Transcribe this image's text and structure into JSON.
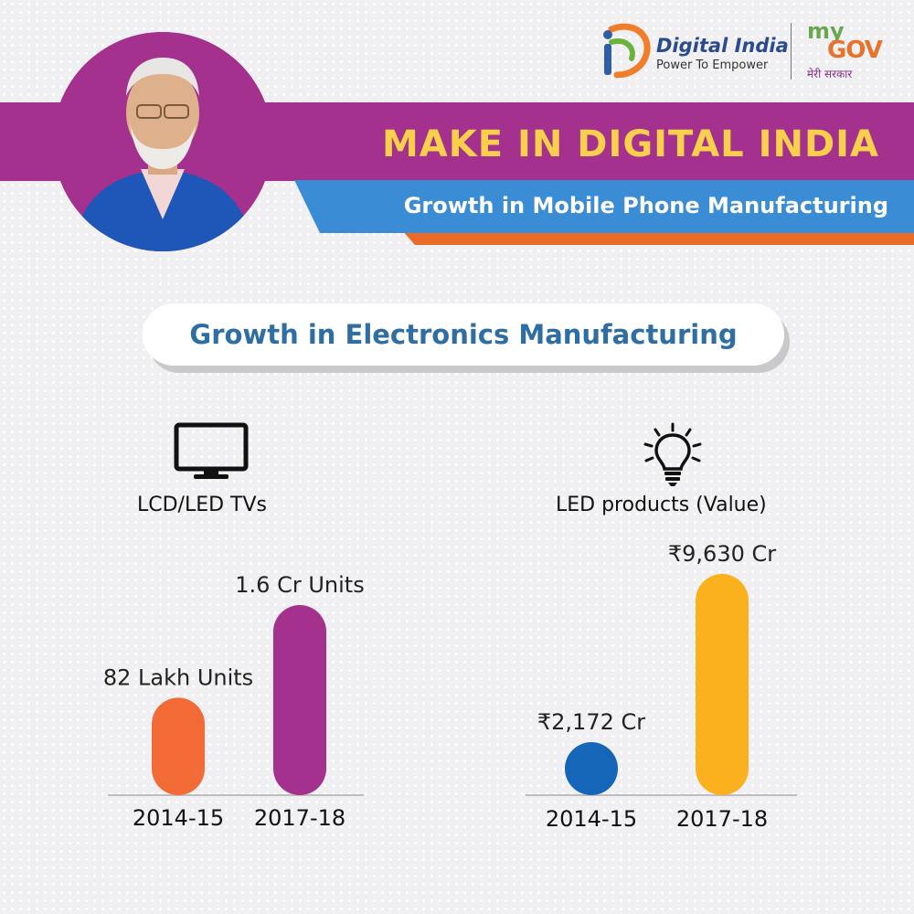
{
  "header": {
    "title": "MAKE IN DIGITAL INDIA",
    "subtitle": "Growth in Mobile Phone Manufacturing",
    "section_title": "Growth in Electronics Manufacturing"
  },
  "logos": {
    "digital_india": "Digital India",
    "digital_india_tagline": "Power To Empower",
    "mygov_my": "my",
    "mygov_gov": "GOV",
    "mygov_hindi": "मेरी सरकार"
  },
  "icons": {
    "tv": "tv-icon",
    "bulb": "bulb-icon"
  },
  "colors": {
    "magenta": "#a3318d",
    "blue_band": "#3a8dd4",
    "orange_band": "#ea6a28",
    "title_yellow": "#f9d04b",
    "pill_text": "#2f6ea3"
  },
  "chart_data": [
    {
      "type": "bar",
      "title": "LCD/LED TVs",
      "categories": [
        "2014-15",
        "2017-18"
      ],
      "values": [
        82,
        160
      ],
      "unit": "Lakh Units",
      "value_labels": [
        "82 Lakh Units",
        "1.6 Cr Units"
      ],
      "colors": [
        "#f26a36",
        "#a3318d"
      ]
    },
    {
      "type": "bar",
      "title": "LED products (Value)",
      "categories": [
        "2014-15",
        "2017-18"
      ],
      "values": [
        2172,
        9630
      ],
      "unit": "₹ Cr",
      "value_labels": [
        "₹2,172 Cr",
        "₹9,630 Cr"
      ],
      "colors": [
        "#1565b8",
        "#fbb01e"
      ]
    }
  ]
}
